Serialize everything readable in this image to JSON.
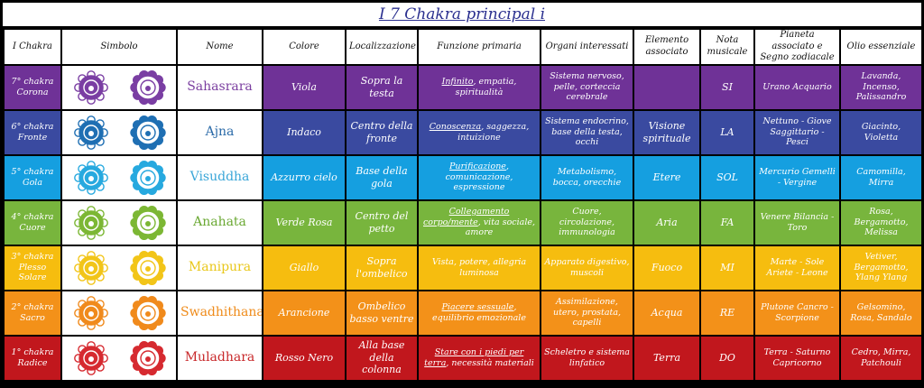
{
  "title": "I 7 Chakra principal i",
  "headers": [
    "I Chakra",
    "Simbolo",
    "Nome",
    "Colore",
    "Localizzazione",
    "Funzione primaria",
    "Organi interessati",
    "Elemento associato",
    "Nota musicale",
    "Pianeta associato e Segno zodiacale",
    "Olio essenziale"
  ],
  "rows": [
    {
      "chakra": "7° chakra Corona",
      "symbol_icons": [
        "sahasrara-outline-icon",
        "sahasrara-lotus-icon"
      ],
      "name": "Sahasrara",
      "name_color": "#7b3fa0",
      "colore": "Viola",
      "localizzazione": "Sopra la testa",
      "funzione_keyword": "Infinito",
      "funzione_rest": ", empatia, spiritualità",
      "organi": "Sistema nervoso, pelle, corteccia cerebrale",
      "elemento": "",
      "nota": "SI",
      "pianeta": "Urano Acquario",
      "olio": "Lavanda, Incenso, Palissandro",
      "bg": "#6f3297",
      "sym_color": "#7a3ea3"
    },
    {
      "chakra": "6° chakra Fronte",
      "symbol_icons": [
        "ajna-outline-icon",
        "ajna-lotus-icon"
      ],
      "name": "Ajna",
      "name_color": "#2a6aa8",
      "colore": "Indaco",
      "localizzazione": "Centro della fronte",
      "funzione_keyword": "Conoscenza",
      "funzione_rest": ", saggezza, intuizione",
      "organi": "Sistema endocrino, base della testa, occhi",
      "elemento": "Visione spirituale",
      "nota": "LA",
      "pianeta": "Nettuno - Giove Saggittario - Pesci",
      "olio": "Giacinto, Violetta",
      "bg": "#3a4aa0",
      "sym_color": "#1f6fb3"
    },
    {
      "chakra": "5° chakra Gola",
      "symbol_icons": [
        "vishuddha-outline-icon",
        "vishuddha-lotus-icon"
      ],
      "name": "Visuddha",
      "name_color": "#3aa6d8",
      "colore": "Azzurro cielo",
      "localizzazione": "Base della gola",
      "funzione_keyword": "Purificazione",
      "funzione_rest": ", comunicazione, espressione",
      "organi": "Metabolismo, bocca, orecchie",
      "elemento": "Etere",
      "nota": "SOL",
      "pianeta": "Mercurio Gemelli - Vergine",
      "olio": "Camomilla, Mirra",
      "bg": "#159fe0",
      "sym_color": "#27a9df"
    },
    {
      "chakra": "4° chakra Cuore",
      "symbol_icons": [
        "anahata-outline-icon",
        "anahata-lotus-icon"
      ],
      "name": "Anahata",
      "name_color": "#6aa832",
      "colore": "Verde Rosa",
      "localizzazione": "Centro del petto",
      "funzione_keyword": "Collegamento corpo/mente",
      "funzione_rest": ", vita sociale, amore",
      "organi": "Cuore, circolazione, immunologia",
      "elemento": "Aria",
      "nota": "FA",
      "pianeta": "Venere Bilancia - Toro",
      "olio": "Rosa, Bergamotto, Melissa",
      "bg": "#78b53d",
      "sym_color": "#7cb734"
    },
    {
      "chakra": "3° chakra Plesso Solare",
      "symbol_icons": [
        "manipura-outline-icon",
        "manipura-lotus-icon"
      ],
      "name": "Manipura",
      "name_color": "#e9c71a",
      "colore": "Giallo",
      "localizzazione": "Sopra l'ombelico",
      "funzione_keyword": "",
      "funzione_rest": "Vista, potere, allegria luminosa",
      "organi": "Apparato digestivo, muscoli",
      "elemento": "Fuoco",
      "nota": "MI",
      "pianeta": "Marte - Sole Ariete - Leone",
      "olio": "Vetiver, Bergamotto, Ylang Ylang",
      "bg": "#f6bd0f",
      "sym_color": "#f2c519"
    },
    {
      "chakra": "2° chakra Sacro",
      "symbol_icons": [
        "svadhisthana-outline-icon",
        "svadhisthana-lotus-icon"
      ],
      "name": "Swadhithana",
      "name_color": "#ef8b1a",
      "colore": "Arancione",
      "localizzazione": "Ombelico basso ventre",
      "funzione_keyword": "Piacere sessuale",
      "funzione_rest": ", equilibrio emozionale",
      "organi": "Assimilazione, utero, prostata, capelli",
      "elemento": "Acqua",
      "nota": "RE",
      "pianeta": "Plutone Cancro - Scorpione",
      "olio": "Gelsomino, Rosa, Sandalo",
      "bg": "#f39119",
      "sym_color": "#f08a1c"
    },
    {
      "chakra": "1° chakra Radice",
      "symbol_icons": [
        "muladhara-outline-icon",
        "muladhara-lotus-icon"
      ],
      "name": "Muladhara",
      "name_color": "#c8282a",
      "colore": "Rosso Nero",
      "localizzazione": "Alla base della colonna",
      "funzione_keyword": "Stare con i piedi per terra",
      "funzione_rest": ", necessità materiali",
      "organi": "Scheletro e sistema linfatico",
      "elemento": "Terra",
      "nota": "DO",
      "pianeta": "Terra - Saturno Capricorno",
      "olio": "Cedro, Mirra, Patchouli",
      "bg": "#c1171d",
      "sym_color": "#d62a30"
    }
  ]
}
